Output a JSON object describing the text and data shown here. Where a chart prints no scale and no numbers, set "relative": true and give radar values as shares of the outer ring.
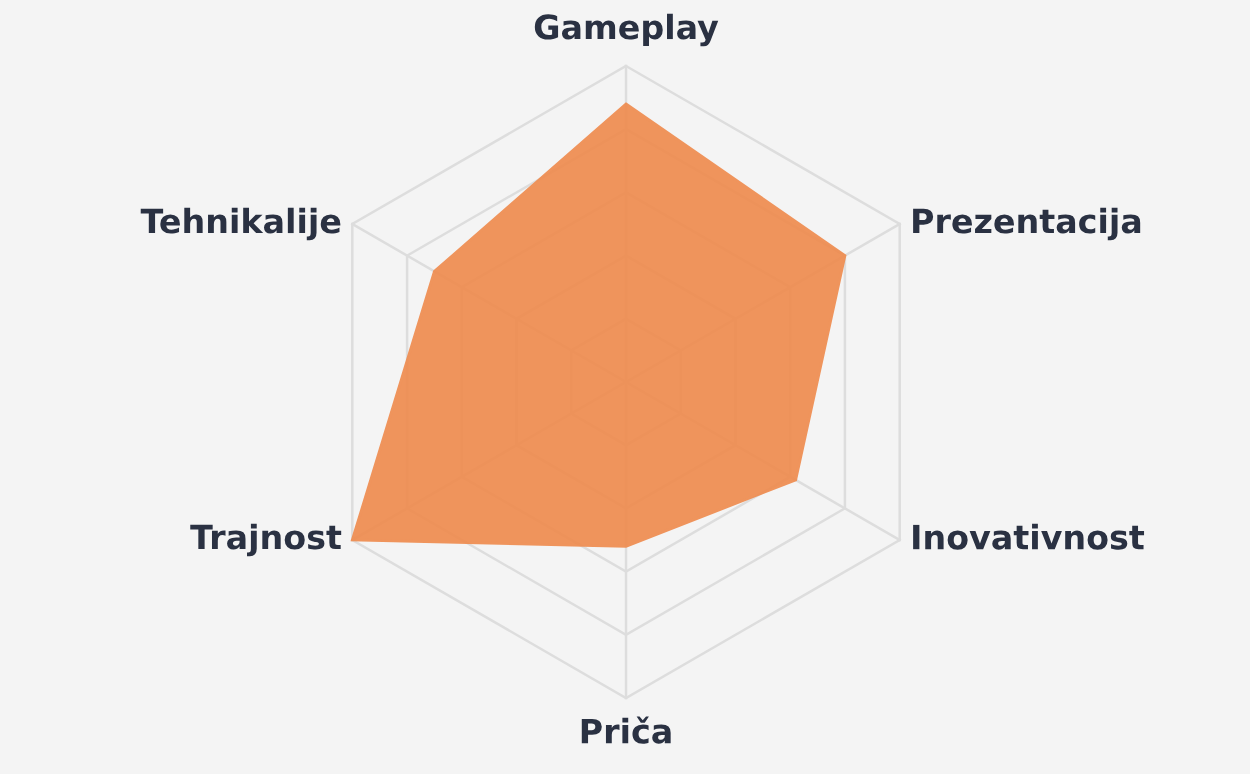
{
  "chart_data": {
    "type": "radar",
    "relative": true,
    "grid": true,
    "categories": [
      "Gameplay",
      "Prezentacija",
      "Inovativnost",
      "Priča",
      "Trajnost",
      "Tehnikalije"
    ],
    "series": [
      {
        "color": "#ef8a4c",
        "values": [
          0.88,
          0.8,
          0.62,
          0.52,
          1.0,
          0.7
        ]
      }
    ]
  }
}
